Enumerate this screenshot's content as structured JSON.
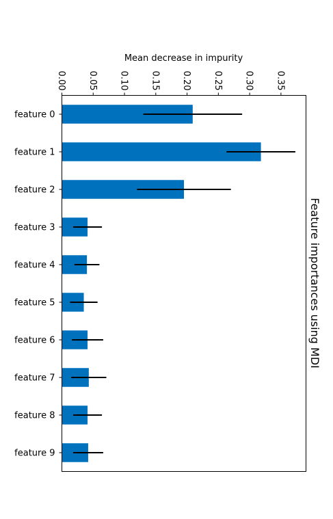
{
  "chart_data": {
    "type": "bar",
    "orientation": "horizontal",
    "title": "Feature importances using MDI",
    "xlabel": "Mean decrease in impurity",
    "ylabel": "",
    "categories": [
      "feature 0",
      "feature 1",
      "feature 2",
      "feature 3",
      "feature 4",
      "feature 5",
      "feature 6",
      "feature 7",
      "feature 8",
      "feature 9"
    ],
    "values": [
      0.209,
      0.318,
      0.195,
      0.041,
      0.04,
      0.035,
      0.041,
      0.043,
      0.041,
      0.042
    ],
    "errors": [
      0.079,
      0.055,
      0.075,
      0.023,
      0.02,
      0.022,
      0.025,
      0.028,
      0.023,
      0.024
    ],
    "xlim": [
      0,
      0.39
    ],
    "xticks": [
      0.0,
      0.05,
      0.1,
      0.15,
      0.2,
      0.25,
      0.3,
      0.35
    ],
    "xtick_labels": [
      "0.00",
      "0.05",
      "0.10",
      "0.15",
      "0.20",
      "0.25",
      "0.30",
      "0.35"
    ],
    "grid": false,
    "bar_color": "#0072bd",
    "error_color": "#000000",
    "rotation": "rotated 90 degrees clockwise"
  }
}
